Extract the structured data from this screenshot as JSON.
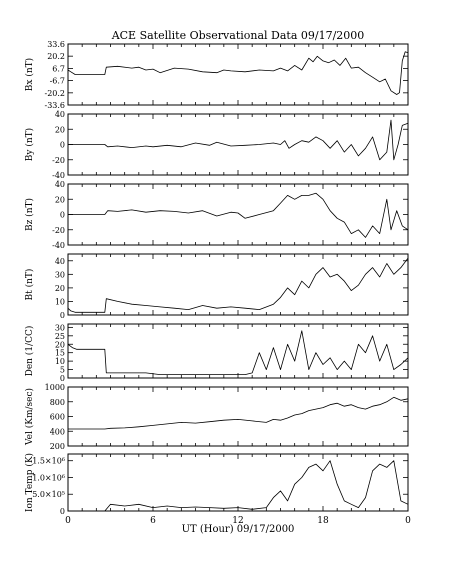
{
  "figure": {
    "title": "ACE Satellite Observational Data   09/17/2000",
    "xlabel": "UT (Hour)   09/17/2000",
    "x_tick_labels": [
      "0",
      "6",
      "12",
      "18",
      "0"
    ]
  },
  "chart_data": [
    {
      "type": "line",
      "ylabel": "Bx (nT)",
      "ylim": [
        -33.6,
        33.6
      ],
      "y_ticks": [
        33.6,
        20.2,
        6.7,
        -6.7,
        -20.2,
        -33.6
      ],
      "y_tick_labels": [
        "33.6",
        "20.2",
        "6.7",
        "-6.7",
        "-20.2",
        "-33.6"
      ],
      "xlim": [
        0,
        24
      ],
      "x_ticks": [
        0,
        6,
        12,
        18,
        24
      ],
      "x": [
        0,
        0.2,
        0.5,
        2.6,
        2.7,
        3.5,
        4.5,
        5.0,
        5.5,
        6.0,
        6.5,
        7.5,
        8.5,
        9.5,
        10.5,
        11.0,
        11.5,
        12.5,
        13.5,
        14.5,
        15.0,
        15.5,
        16.0,
        16.5,
        17.0,
        17.3,
        17.6,
        18.0,
        18.4,
        18.8,
        19.2,
        19.6,
        20.0,
        20.5,
        21.0,
        21.5,
        22.0,
        22.4,
        22.8,
        23.2,
        23.4,
        23.6,
        23.8,
        24.0
      ],
      "y": [
        5,
        3,
        0,
        0,
        8,
        9,
        7,
        8,
        5,
        6,
        2,
        7,
        6,
        3,
        2,
        5,
        4,
        3,
        5,
        4,
        7,
        4,
        10,
        5,
        18,
        14,
        20,
        15,
        13,
        16,
        10,
        18,
        7,
        8,
        2,
        -3,
        -8,
        -5,
        -18,
        -22,
        -20,
        15,
        25,
        24
      ]
    },
    {
      "type": "line",
      "ylabel": "By (nT)",
      "ylim": [
        -40,
        40
      ],
      "y_ticks": [
        40,
        20,
        0,
        -20,
        -40
      ],
      "y_tick_labels": [
        "40",
        "20",
        "0",
        "-20",
        "-40"
      ],
      "xlim": [
        0,
        24
      ],
      "x_ticks": [
        0,
        6,
        12,
        18,
        24
      ],
      "x": [
        0,
        2.6,
        2.8,
        3.5,
        4.5,
        5.5,
        6.0,
        7.0,
        8.0,
        9.0,
        10.0,
        10.5,
        11.5,
        12.5,
        13.5,
        14.5,
        15.0,
        15.3,
        15.6,
        16.0,
        16.5,
        17.0,
        17.5,
        18.0,
        18.5,
        19.0,
        19.5,
        20.0,
        20.5,
        21.0,
        21.5,
        22.0,
        22.5,
        22.8,
        23.0,
        23.3,
        23.6,
        24.0
      ],
      "y": [
        0,
        0,
        -3,
        -2,
        -4,
        -2,
        -3,
        -1,
        -3,
        2,
        -1,
        3,
        -2,
        -1,
        0,
        2,
        0,
        5,
        -5,
        0,
        5,
        3,
        10,
        5,
        -5,
        5,
        -10,
        0,
        -15,
        -5,
        10,
        -20,
        -10,
        32,
        -20,
        0,
        25,
        28
      ]
    },
    {
      "type": "line",
      "ylabel": "Bz (nT)",
      "ylim": [
        -40,
        40
      ],
      "y_ticks": [
        40,
        20,
        0,
        -20,
        -40
      ],
      "y_tick_labels": [
        "40",
        "20",
        "0",
        "-20",
        "-40"
      ],
      "xlim": [
        0,
        24
      ],
      "x_ticks": [
        0,
        6,
        12,
        18,
        24
      ],
      "x": [
        0,
        2.6,
        2.8,
        3.5,
        4.5,
        5.5,
        6.5,
        7.5,
        8.5,
        9.5,
        10.5,
        11.5,
        12.0,
        12.5,
        13.5,
        14.5,
        15.0,
        15.5,
        16.0,
        16.5,
        17.0,
        17.5,
        18.0,
        18.5,
        19.0,
        19.5,
        20.0,
        20.5,
        21.0,
        21.5,
        22.0,
        22.5,
        22.8,
        23.2,
        23.6,
        24.0
      ],
      "y": [
        0,
        0,
        5,
        4,
        6,
        3,
        5,
        4,
        2,
        5,
        -2,
        3,
        2,
        -5,
        0,
        5,
        15,
        25,
        20,
        25,
        25,
        28,
        20,
        5,
        -5,
        -10,
        -25,
        -20,
        -30,
        -15,
        -25,
        20,
        -20,
        5,
        -15,
        -20
      ]
    },
    {
      "type": "line",
      "ylabel": "Bt (nT)",
      "ylim": [
        0,
        45
      ],
      "y_ticks": [
        40,
        30,
        20,
        10,
        0
      ],
      "y_tick_labels": [
        "40",
        "30",
        "20",
        "10",
        "0"
      ],
      "xlim": [
        0,
        24
      ],
      "x_ticks": [
        0,
        6,
        12,
        18,
        24
      ],
      "x": [
        0,
        0.2,
        0.5,
        2.6,
        2.7,
        3.5,
        4.5,
        5.5,
        6.5,
        7.5,
        8.5,
        9.5,
        10.5,
        11.5,
        12.5,
        13.5,
        14.5,
        15.0,
        15.5,
        16.0,
        16.5,
        17.0,
        17.5,
        18.0,
        18.5,
        19.0,
        19.5,
        20.0,
        20.5,
        21.0,
        21.5,
        22.0,
        22.5,
        23.0,
        23.5,
        24.0
      ],
      "y": [
        5,
        3,
        2,
        2,
        12,
        10,
        8,
        7,
        6,
        5,
        4,
        7,
        5,
        6,
        5,
        4,
        8,
        13,
        20,
        15,
        25,
        20,
        30,
        35,
        28,
        30,
        25,
        18,
        22,
        30,
        35,
        28,
        38,
        30,
        35,
        42
      ]
    },
    {
      "type": "line",
      "ylabel": "Den (1/CC)",
      "ylim": [
        0,
        32
      ],
      "y_ticks": [
        30,
        25,
        20,
        15,
        10,
        5,
        0
      ],
      "y_tick_labels": [
        "30",
        "25",
        "20",
        "15",
        "10",
        "5",
        "0"
      ],
      "xlim": [
        0,
        24
      ],
      "x_ticks": [
        0,
        6,
        12,
        18,
        24
      ],
      "x": [
        0,
        0.3,
        0.6,
        2.6,
        2.7,
        3.5,
        4.5,
        5.5,
        6.5,
        7.5,
        8.5,
        9.5,
        10.5,
        11.5,
        12.5,
        13.0,
        13.5,
        14.0,
        14.5,
        15.0,
        15.5,
        16.0,
        16.5,
        17.0,
        17.5,
        18.0,
        18.5,
        19.0,
        19.5,
        20.0,
        20.5,
        21.0,
        21.5,
        22.0,
        22.5,
        23.0,
        23.5,
        24.0
      ],
      "y": [
        20,
        18,
        17,
        17,
        3,
        3,
        3,
        3,
        2,
        2,
        2,
        2,
        2,
        2,
        2,
        3,
        15,
        5,
        18,
        5,
        20,
        10,
        28,
        5,
        15,
        8,
        12,
        5,
        10,
        5,
        20,
        15,
        25,
        10,
        20,
        5,
        8,
        12
      ]
    },
    {
      "type": "line",
      "ylabel": "Vel (Km/sec)",
      "ylim": [
        200,
        1000
      ],
      "y_ticks": [
        1000,
        800,
        600,
        400,
        200
      ],
      "y_tick_labels": [
        "1000",
        "800",
        "600",
        "400",
        "200"
      ],
      "xlim": [
        0,
        24
      ],
      "x_ticks": [
        0,
        6,
        12,
        18,
        24
      ],
      "x": [
        0,
        2.6,
        3.0,
        4.0,
        5.0,
        6.0,
        7.0,
        8.0,
        9.0,
        10.0,
        11.0,
        12.0,
        13.0,
        14.0,
        14.5,
        15.0,
        15.5,
        16.0,
        16.5,
        17.0,
        17.5,
        18.0,
        18.5,
        19.0,
        19.5,
        20.0,
        20.5,
        21.0,
        21.5,
        22.0,
        22.5,
        23.0,
        23.5,
        24.0
      ],
      "y": [
        430,
        430,
        440,
        445,
        460,
        480,
        500,
        520,
        510,
        530,
        550,
        560,
        540,
        520,
        560,
        550,
        580,
        620,
        640,
        680,
        700,
        720,
        760,
        780,
        740,
        760,
        720,
        700,
        740,
        760,
        800,
        860,
        820,
        840
      ]
    },
    {
      "type": "line",
      "ylabel": "Ion Temp (K)",
      "ylim": [
        0,
        1700000
      ],
      "y_ticks": [
        1500000,
        1000000,
        500000,
        0
      ],
      "y_tick_labels": [
        "1.5×10⁶",
        "1.0×10⁶",
        "5.0×10⁵",
        "0"
      ],
      "xlim": [
        0,
        24
      ],
      "x_ticks": [
        0,
        6,
        12,
        18,
        24
      ],
      "x": [
        0,
        2.6,
        3.0,
        4.0,
        5.0,
        6.0,
        7.0,
        8.0,
        9.0,
        10.0,
        11.0,
        12.0,
        13.0,
        14.0,
        14.5,
        15.0,
        15.5,
        16.0,
        16.5,
        17.0,
        17.5,
        18.0,
        18.5,
        19.0,
        19.5,
        20.0,
        20.5,
        21.0,
        21.5,
        22.0,
        22.5,
        23.0,
        23.5,
        24.0
      ],
      "y": [
        0,
        0,
        200000,
        150000,
        200000,
        100000,
        150000,
        100000,
        120000,
        100000,
        80000,
        100000,
        50000,
        100000,
        400000,
        600000,
        300000,
        800000,
        1000000,
        1300000,
        1400000,
        1200000,
        1500000,
        800000,
        300000,
        200000,
        100000,
        400000,
        1200000,
        1400000,
        1300000,
        1500000,
        300000,
        200000
      ]
    }
  ]
}
